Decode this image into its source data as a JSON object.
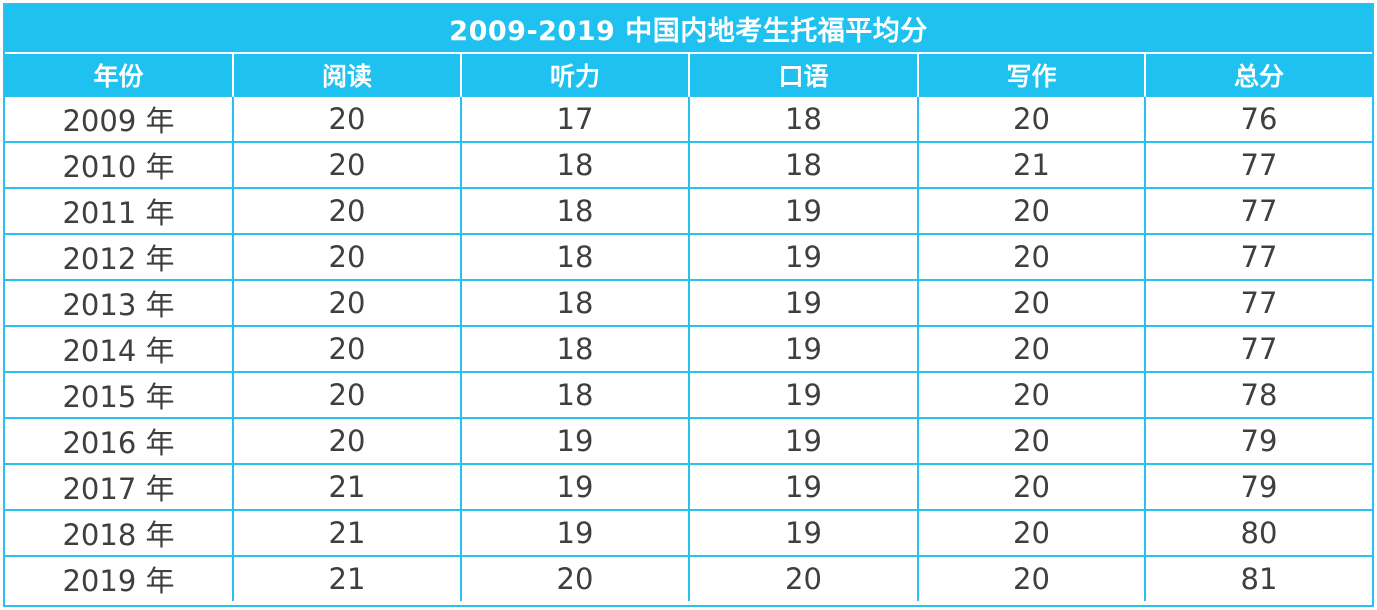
{
  "chart_data": {
    "type": "table",
    "title": "2009-2019 中国内地考生托福平均分",
    "columns": [
      "年份",
      "阅读",
      "听力",
      "口语",
      "写作",
      "总分"
    ],
    "rows": [
      [
        "2009 年",
        "20",
        "17",
        "18",
        "20",
        "76"
      ],
      [
        "2010 年",
        "20",
        "18",
        "18",
        "21",
        "77"
      ],
      [
        "2011 年",
        "20",
        "18",
        "19",
        "20",
        "77"
      ],
      [
        "2012 年",
        "20",
        "18",
        "19",
        "20",
        "77"
      ],
      [
        "2013 年",
        "20",
        "18",
        "19",
        "20",
        "77"
      ],
      [
        "2014 年",
        "20",
        "18",
        "19",
        "20",
        "77"
      ],
      [
        "2015 年",
        "20",
        "18",
        "19",
        "20",
        "78"
      ],
      [
        "2016 年",
        "20",
        "19",
        "19",
        "20",
        "79"
      ],
      [
        "2017 年",
        "21",
        "19",
        "19",
        "20",
        "79"
      ],
      [
        "2018 年",
        "21",
        "19",
        "19",
        "20",
        "80"
      ],
      [
        "2019 年",
        "21",
        "20",
        "20",
        "20",
        "81"
      ]
    ]
  },
  "colors": {
    "header_background": "#1fc1f0",
    "grid_lines": "#29c2f0",
    "header_text": "#ffffff",
    "cell_text": "#3f3f3f"
  }
}
